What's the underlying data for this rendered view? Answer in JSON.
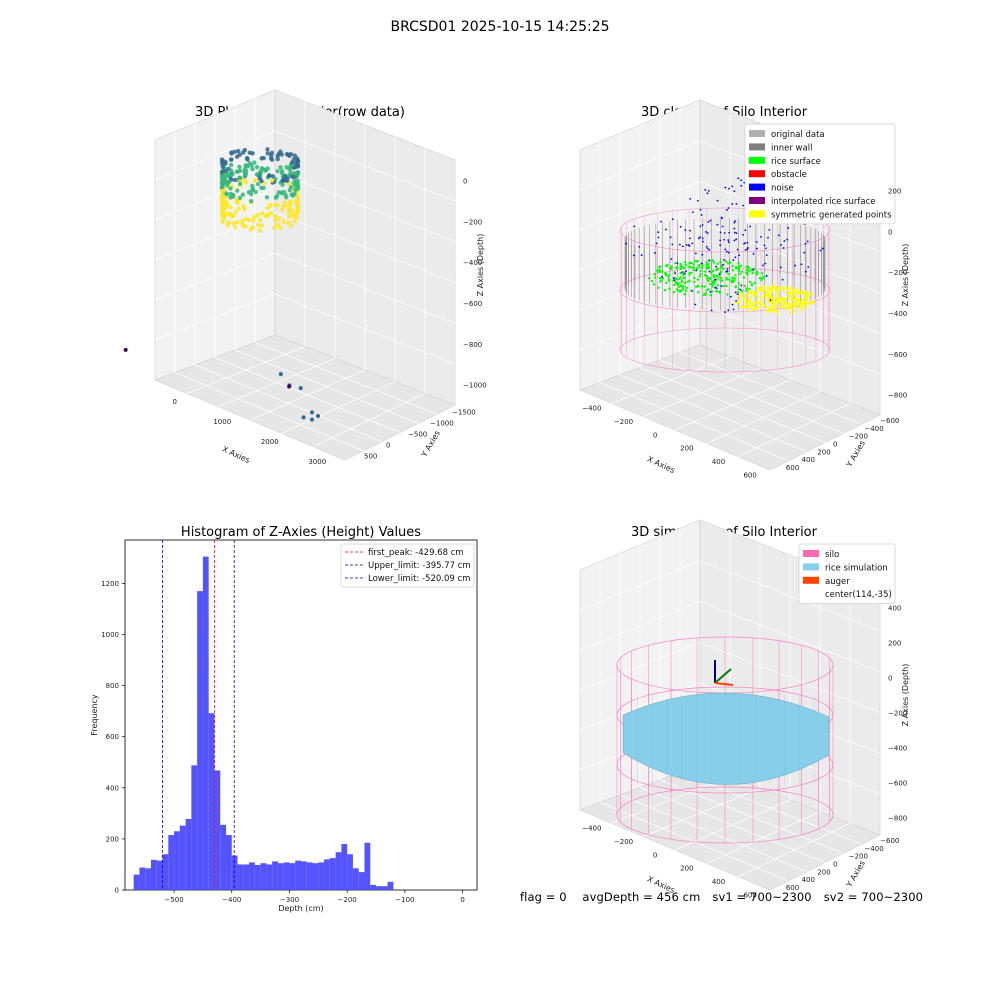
{
  "suptitle": "BRCSD01 2025-10-15 14:25:25",
  "footer": {
    "flag": "flag = 0",
    "avg_depth": "avgDepth = 456 cm",
    "sv1": "sv1 = 700~2300",
    "sv2": "sv2 = 700~2300"
  },
  "chart_data": [
    {
      "type": "scatter3d",
      "title": "3D Plot of Silo Interior(row data)",
      "xlabel": "X Axies",
      "ylabel": "Y Axies",
      "zlabel": "Z Axies (Depth)",
      "x_ticks": [
        "0",
        "1000",
        "2000",
        "3000"
      ],
      "y_ticks": [
        "500",
        "0",
        "−500",
        "−1000",
        "−1500"
      ],
      "z_ticks": [
        "0",
        "−200",
        "−400",
        "−600",
        "−800",
        "−1000"
      ],
      "colormap": [
        "#440154",
        "#31688e",
        "#35b779",
        "#fde725"
      ],
      "outlier_points": [
        {
          "x": 2700,
          "y": 300,
          "z": -580
        },
        {
          "x": 2700,
          "y": 300,
          "z": -640
        },
        {
          "x": 2600,
          "y": 200,
          "z": -850
        },
        {
          "x": 2500,
          "y": 100,
          "z": -880
        },
        {
          "x": 2450,
          "y": 0,
          "z": -990
        },
        {
          "x": 2850,
          "y": -200,
          "z": -1010
        },
        {
          "x": 3250,
          "y": -300,
          "z": -850
        },
        {
          "x": 3650,
          "y": -400,
          "z": -960
        },
        {
          "x": 500,
          "y": -900,
          "z": -1070
        }
      ]
    },
    {
      "type": "scatter3d",
      "title": "3D classify of Silo Interior",
      "xlabel": "X Axies",
      "ylabel": "Y Axies",
      "zlabel": "Z Axies (Depth)",
      "x_ticks": [
        "−400",
        "−200",
        "0",
        "200",
        "400",
        "600"
      ],
      "y_ticks": [
        "600",
        "400",
        "200",
        "0",
        "−200",
        "−400",
        "−600"
      ],
      "z_ticks": [
        "200",
        "0",
        "−200",
        "−400",
        "−600",
        "−800"
      ],
      "legend_position": "top-right",
      "legend": [
        {
          "label": "original data",
          "color": "#b0b0b0"
        },
        {
          "label": "inner wall",
          "color": "#808080"
        },
        {
          "label": "rice surface",
          "color": "#00ff00"
        },
        {
          "label": "obstacle",
          "color": "#ff0000"
        },
        {
          "label": "noise",
          "color": "#0000ff"
        },
        {
          "label": "interpolated rice surface",
          "color": "#800080"
        },
        {
          "label": "symmetric generated points",
          "color": "#ffff00"
        }
      ],
      "silo_wire_color": "#ff69b4"
    },
    {
      "type": "bar",
      "title": "Histogram of Z-Axies (Height) Values",
      "xlabel": "Depth (cm)",
      "ylabel": "Frequency",
      "bin_start": -570,
      "bin_width": 10,
      "xlim": [
        -585,
        25
      ],
      "ylim": [
        0,
        1370
      ],
      "x_ticks": [
        -500,
        -400,
        -300,
        -200,
        -100,
        0
      ],
      "y_ticks": [
        0,
        200,
        400,
        600,
        800,
        1000,
        1200
      ],
      "bar_color": "#4b4bff",
      "values": [
        60,
        88,
        85,
        118,
        115,
        140,
        215,
        230,
        252,
        278,
        488,
        1170,
        1305,
        692,
        468,
        255,
        215,
        135,
        100,
        100,
        108,
        98,
        105,
        100,
        112,
        105,
        108,
        105,
        115,
        112,
        108,
        105,
        108,
        120,
        125,
        148,
        180,
        140,
        85,
        70,
        185,
        20,
        15,
        15,
        32
      ],
      "vlines": [
        {
          "x": -429.68,
          "color": "#ff0000",
          "label": "first_peak: -429.68 cm"
        },
        {
          "x": -395.77,
          "color": "#00008b",
          "label": "Upper_limit: -395.77 cm"
        },
        {
          "x": -520.09,
          "color": "#0000cd",
          "label": "Lower_limit: -520.09 cm"
        }
      ],
      "legend_position": "top-right"
    },
    {
      "type": "surface3d",
      "title": "3D simulation of Silo Interior",
      "xlabel": "X Axies",
      "ylabel": "Y Axies",
      "zlabel": "Z Axies (Depth)",
      "x_ticks": [
        "−400",
        "−200",
        "0",
        "200",
        "400",
        "600"
      ],
      "y_ticks": [
        "600",
        "400",
        "200",
        "0",
        "−200",
        "−400",
        "−600"
      ],
      "z_ticks": [
        "400",
        "200",
        "0",
        "−200",
        "−400",
        "−600",
        "−800"
      ],
      "legend_position": "top-right",
      "legend": [
        {
          "label": "silo",
          "color": "#ff69b4"
        },
        {
          "label": "rice simulation",
          "color": "#87ceeb"
        },
        {
          "label": "auger",
          "color": "#ff4500"
        },
        {
          "label": "center(114,-35)",
          "color": ""
        }
      ]
    }
  ]
}
